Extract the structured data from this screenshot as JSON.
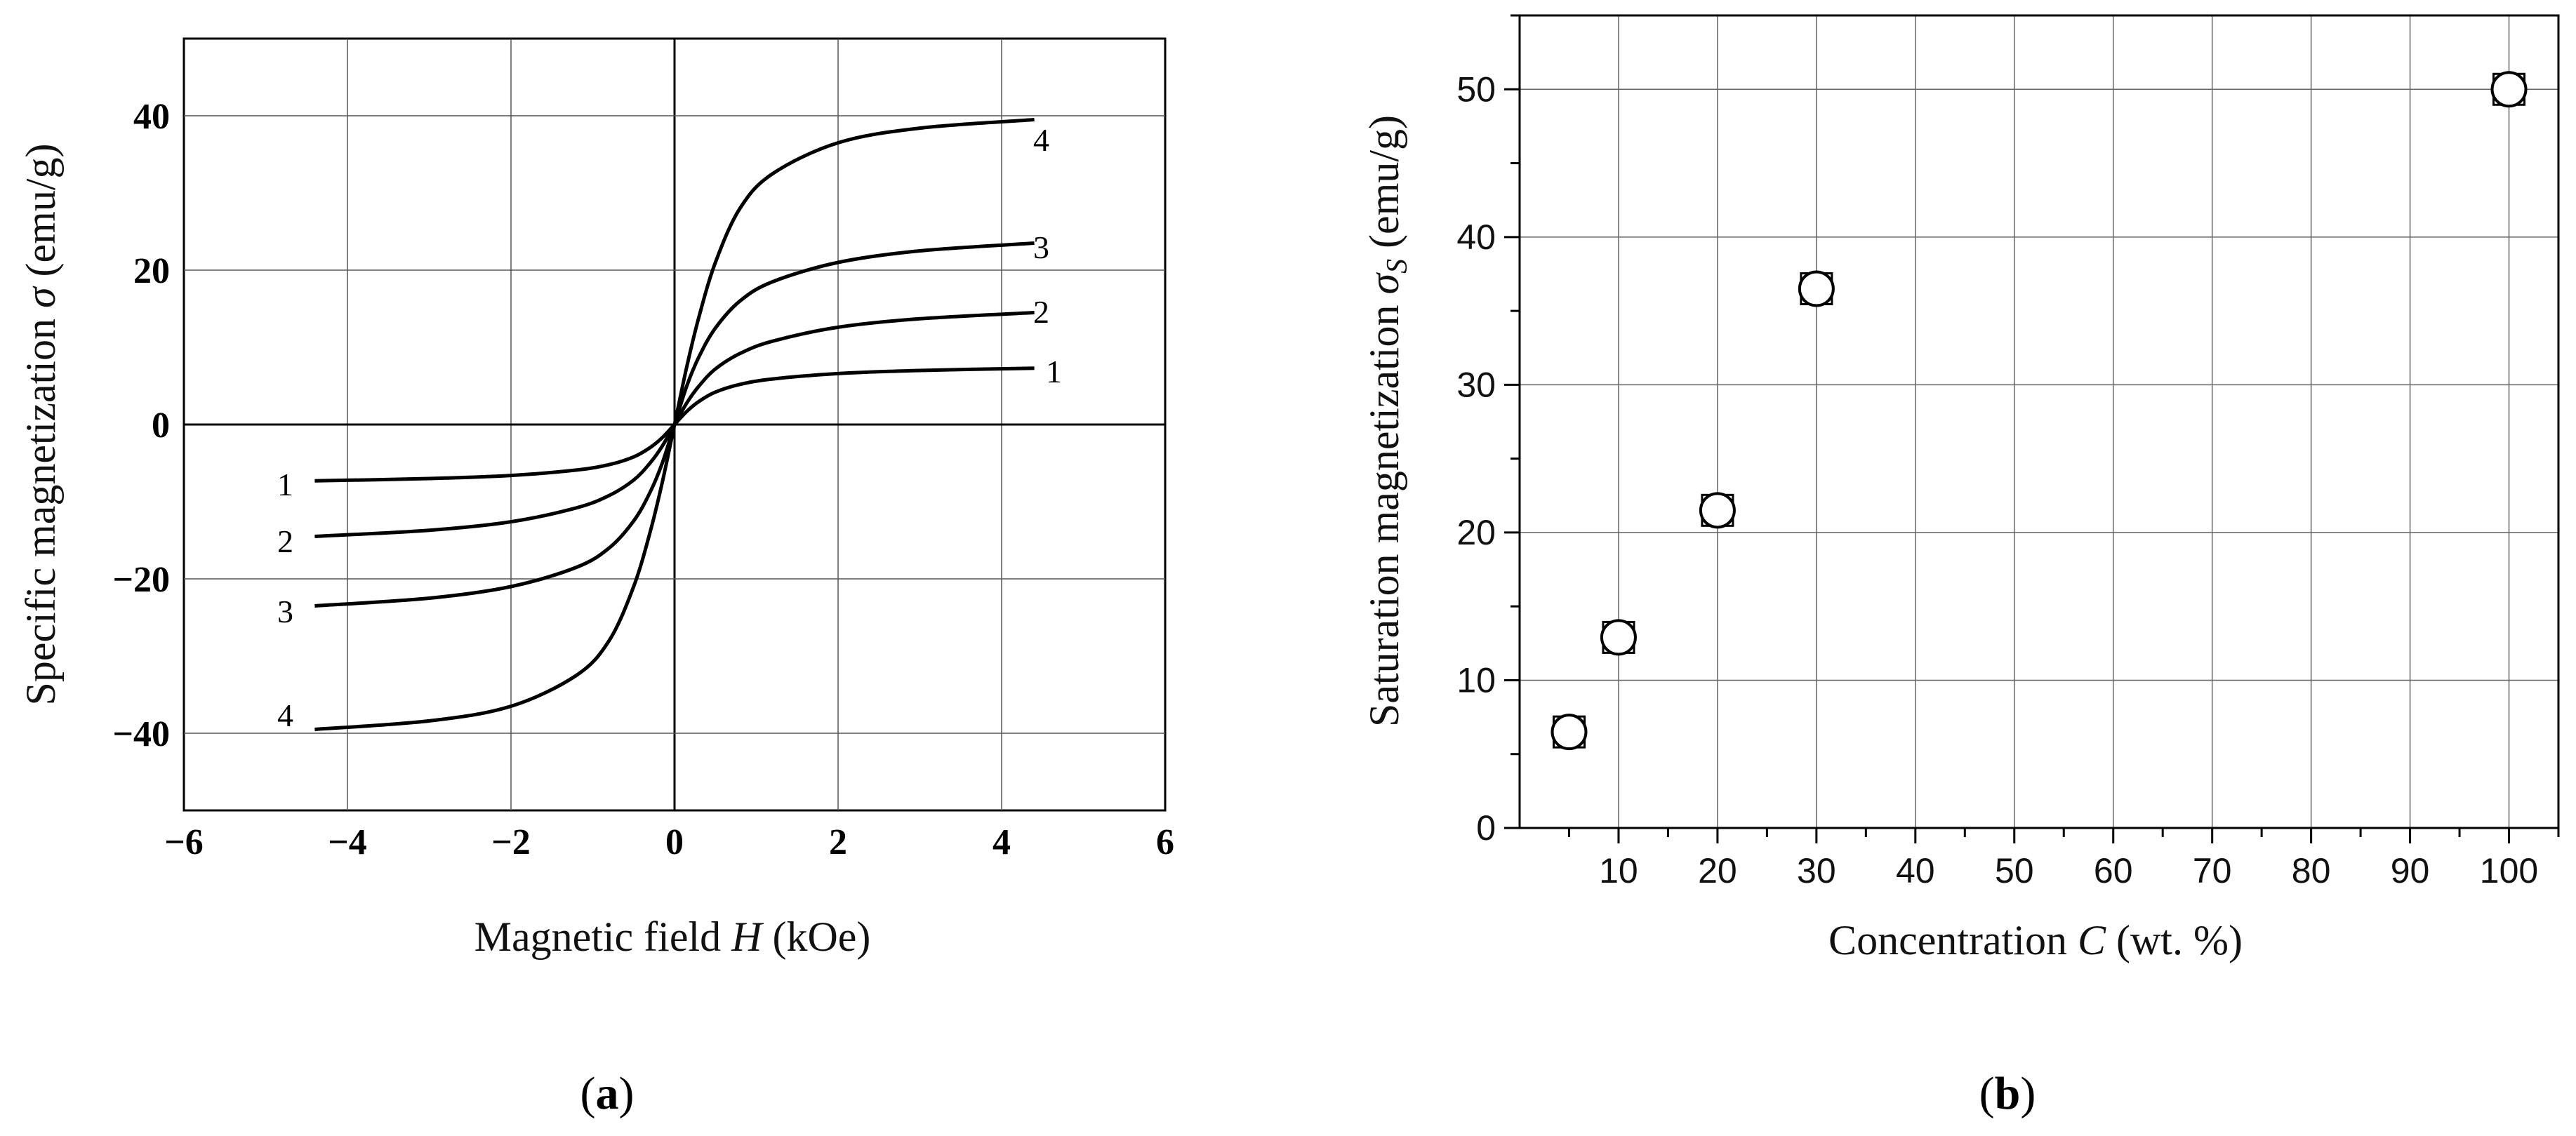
{
  "chart_data": [
    {
      "type": "line",
      "panel_label_open": "(",
      "panel_label_letter": "a",
      "panel_label_close": ")",
      "xlabel_prefix": "Magnetic field ",
      "xlabel_var": "H",
      "xlabel_suffix": " (kOe)",
      "ylabel_prefix": "Specific magnetization ",
      "ylabel_var": "σ",
      "ylabel_suffix": " (emu/g)",
      "xlim": [
        -6,
        6
      ],
      "ylim": [
        -50,
        50
      ],
      "x_ticks": [
        -6,
        -4,
        -2,
        0,
        2,
        4,
        6
      ],
      "x_tick_labels": [
        "−6",
        "−4",
        "−2",
        "0",
        "2",
        "4",
        "6"
      ],
      "y_ticks": [
        -40,
        -20,
        0,
        20,
        40
      ],
      "y_tick_labels": [
        "−40",
        "−20",
        "0",
        "20",
        "40"
      ],
      "grid": true,
      "series": [
        {
          "name": "1",
          "x": [
            -4.4,
            -3,
            -2,
            -1.2,
            -0.8,
            -0.5,
            -0.3,
            -0.15,
            0,
            0.15,
            0.3,
            0.5,
            0.8,
            1.2,
            2,
            3,
            4.4
          ],
          "y": [
            -7.3,
            -7.0,
            -6.6,
            -5.9,
            -5.2,
            -4.2,
            -3.0,
            -1.7,
            0,
            1.7,
            3.0,
            4.2,
            5.2,
            5.9,
            6.6,
            7.0,
            7.3
          ]
        },
        {
          "name": "2",
          "x": [
            -4.4,
            -3,
            -2,
            -1.2,
            -0.8,
            -0.5,
            -0.3,
            -0.15,
            0,
            0.15,
            0.3,
            0.5,
            0.8,
            1.2,
            2,
            3,
            4.4
          ],
          "y": [
            -14.5,
            -13.7,
            -12.6,
            -10.8,
            -9.2,
            -7.2,
            -5.0,
            -2.8,
            0,
            2.8,
            5.0,
            7.2,
            9.2,
            10.8,
            12.6,
            13.7,
            14.5
          ]
        },
        {
          "name": "3",
          "x": [
            -4.4,
            -3,
            -2,
            -1.2,
            -0.8,
            -0.5,
            -0.3,
            -0.15,
            0,
            0.15,
            0.3,
            0.5,
            0.8,
            1.2,
            2,
            3,
            4.4
          ],
          "y": [
            -23.5,
            -22.5,
            -21.0,
            -18.5,
            -16.0,
            -12.5,
            -8.8,
            -5.0,
            0,
            5.0,
            8.8,
            12.5,
            16.0,
            18.5,
            21.0,
            22.5,
            23.5
          ]
        },
        {
          "name": "4",
          "x": [
            -4.4,
            -3,
            -2,
            -1.2,
            -0.8,
            -0.5,
            -0.3,
            -0.15,
            0,
            0.15,
            0.3,
            0.5,
            0.8,
            1.2,
            2,
            3,
            4.4
          ],
          "y": [
            -39.5,
            -38.4,
            -36.5,
            -32.5,
            -28.0,
            -21.0,
            -14.0,
            -7.5,
            0,
            7.5,
            14.0,
            21.0,
            28.0,
            32.5,
            36.5,
            38.4,
            39.5
          ]
        }
      ]
    },
    {
      "type": "scatter",
      "panel_label_open": "(",
      "panel_label_letter": "b",
      "panel_label_close": ")",
      "xlabel_prefix": "Concentration ",
      "xlabel_var": "C",
      "xlabel_suffix": " (wt. %)",
      "ylabel_prefix": "Saturation magnetization ",
      "ylabel_var": "σ",
      "ylabel_sub": "S",
      "ylabel_suffix": " (emu/g)",
      "xlim": [
        0,
        105
      ],
      "ylim": [
        0,
        55
      ],
      "x_ticks": [
        10,
        20,
        30,
        40,
        50,
        60,
        70,
        80,
        90,
        100
      ],
      "x_tick_labels": [
        "10",
        "20",
        "30",
        "40",
        "50",
        "60",
        "70",
        "80",
        "90",
        "100"
      ],
      "y_ticks": [
        0,
        10,
        20,
        30,
        40,
        50
      ],
      "y_tick_labels": [
        "0",
        "10",
        "20",
        "30",
        "40",
        "50"
      ],
      "grid": true,
      "series": [
        {
          "x": [
            5,
            10,
            20,
            30,
            100
          ],
          "y": [
            6.5,
            12.9,
            21.5,
            36.5,
            50.0
          ]
        }
      ]
    }
  ]
}
